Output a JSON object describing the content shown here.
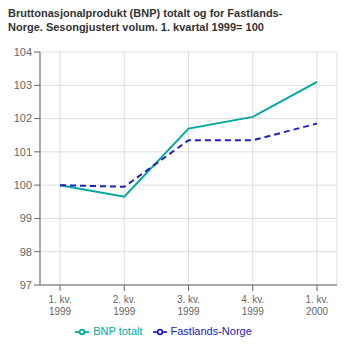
{
  "chart_data": {
    "type": "line",
    "title": "Bruttonasjonalprodukt (BNP) totalt og for Fastlands-\nNorge. Sesongjustert volum. 1. kvartal 1999= 100",
    "categories": [
      "1. kv.\n1999",
      "2. kv.\n1999",
      "3. kv.\n1999",
      "4. kv.\n1999",
      "1. kv.\n2000"
    ],
    "series": [
      {
        "name": "BNP totalt",
        "color": "#00A99D",
        "line_style": "solid",
        "values": [
          100.0,
          99.65,
          101.7,
          102.05,
          103.1
        ]
      },
      {
        "name": "Fastlands-Norge",
        "color": "#2222BB",
        "line_style": "dashed",
        "values": [
          100.0,
          99.95,
          101.35,
          101.35,
          101.85
        ]
      }
    ],
    "ylim": [
      97,
      104
    ],
    "yticks": [
      97,
      98,
      99,
      100,
      101,
      102,
      103,
      104
    ],
    "grid": true,
    "legend": "bottom"
  }
}
